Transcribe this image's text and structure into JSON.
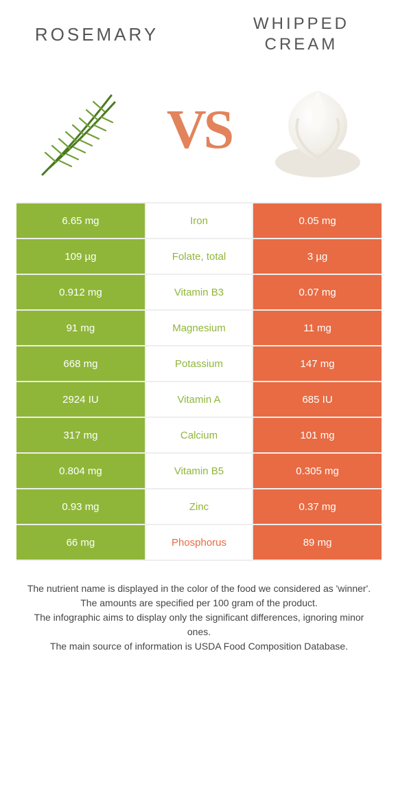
{
  "colors": {
    "left": "#8fb639",
    "right": "#e86b43",
    "mid_bg": "#ffffff",
    "row_border": "#eeeeee"
  },
  "titles": {
    "left": "Rosemary",
    "right": "Whipped cream"
  },
  "vs": "VS",
  "rows": [
    {
      "label": "Iron",
      "left": "6.65 mg",
      "right": "0.05 mg",
      "winner": "left"
    },
    {
      "label": "Folate, total",
      "left": "109 µg",
      "right": "3 µg",
      "winner": "left"
    },
    {
      "label": "Vitamin B3",
      "left": "0.912 mg",
      "right": "0.07 mg",
      "winner": "left"
    },
    {
      "label": "Magnesium",
      "left": "91 mg",
      "right": "11 mg",
      "winner": "left"
    },
    {
      "label": "Potassium",
      "left": "668 mg",
      "right": "147 mg",
      "winner": "left"
    },
    {
      "label": "Vitamin A",
      "left": "2924 IU",
      "right": "685 IU",
      "winner": "left"
    },
    {
      "label": "Calcium",
      "left": "317 mg",
      "right": "101 mg",
      "winner": "left"
    },
    {
      "label": "Vitamin B5",
      "left": "0.804 mg",
      "right": "0.305 mg",
      "winner": "left"
    },
    {
      "label": "Zinc",
      "left": "0.93 mg",
      "right": "0.37 mg",
      "winner": "left"
    },
    {
      "label": "Phosphorus",
      "left": "66 mg",
      "right": "89 mg",
      "winner": "right"
    }
  ],
  "notes": [
    "The nutrient name is displayed in the color of the food we considered as 'winner'.",
    "The amounts are specified per 100 gram of the product.",
    "The infographic aims to display only the significant differences, ignoring minor ones.",
    "The main source of information is USDA Food Composition Database."
  ]
}
